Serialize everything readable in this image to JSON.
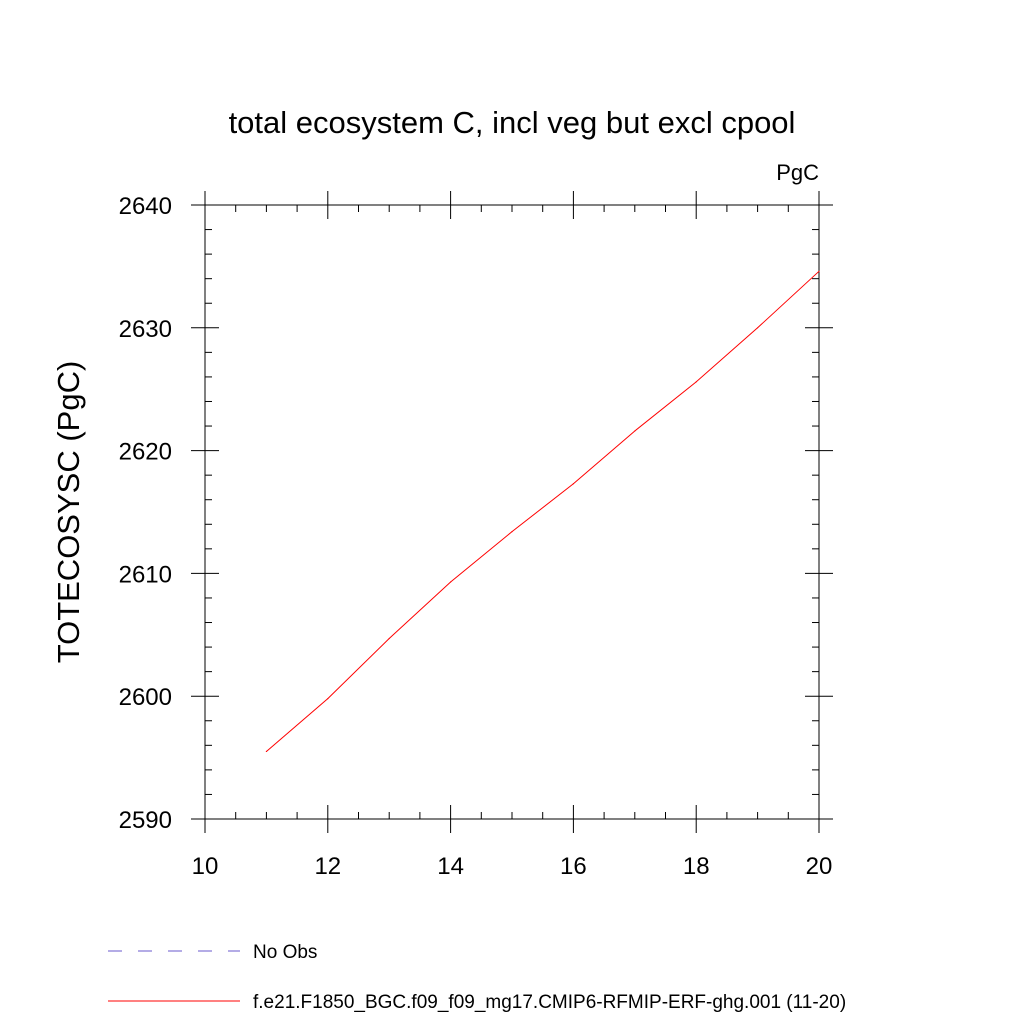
{
  "chart_data": {
    "type": "line",
    "title": "total ecosystem C, incl veg but excl cpool",
    "units": "PgC",
    "xlabel": "",
    "ylabel": "TOTECOSYSC  (PgC)",
    "xlim": [
      10,
      20
    ],
    "ylim": [
      2590,
      2640
    ],
    "x_ticks": [
      "10",
      "12",
      "14",
      "16",
      "18",
      "20"
    ],
    "y_ticks": [
      "2590",
      "2600",
      "2610",
      "2620",
      "2630",
      "2640"
    ],
    "grid": false,
    "legend_position": "bottom-left",
    "series": [
      {
        "name": "f.e21.F1850_BGC.f09_f09_mg17.CMIP6-RFMIP-ERF-ghg.001 (11-20)",
        "color": "#ff0000",
        "style": "solid",
        "x": [
          11,
          12,
          13,
          14,
          15,
          16,
          17,
          18,
          19,
          20
        ],
        "y": [
          2595.5,
          2599.8,
          2604.7,
          2609.3,
          2613.4,
          2617.3,
          2621.6,
          2625.6,
          2630.0,
          2634.6
        ]
      }
    ],
    "legend": [
      {
        "label": "No Obs",
        "color": "#6a5acd",
        "style": "dashed"
      },
      {
        "label": "f.e21.F1850_BGC.f09_f09_mg17.CMIP6-RFMIP-ERF-ghg.001 (11-20)",
        "color": "#ff0000",
        "style": "solid"
      }
    ]
  }
}
